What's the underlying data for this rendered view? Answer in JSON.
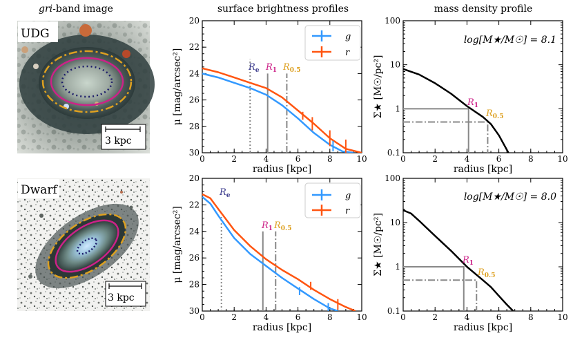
{
  "column_titles": {
    "image_prefix": "gri",
    "image_suffix": "-band image",
    "sb": "surface brightness profiles",
    "mass": "mass density profile"
  },
  "galaxies": [
    {
      "label": "UDG",
      "scale_bar": "3 kpc",
      "mass_text": "log[M★/M☉] = 8.1"
    },
    {
      "label": "Dwarf",
      "scale_bar": "3 kpc",
      "mass_text": "log[M★/M☉] = 8.0"
    }
  ],
  "legend": {
    "g": "g",
    "r": "r"
  },
  "radius_labels": {
    "Re": "R",
    "Re_sub": "e",
    "R1": "R",
    "R1_sub": "1",
    "R05": "R",
    "R05_sub": "0.5"
  },
  "colors": {
    "g": "#3399ff",
    "r": "#ff5511",
    "Re": "#3a3a8c",
    "R1": "#cc2288",
    "R05": "#dda020",
    "ref_line": "#888888",
    "mass_curve": "#000000"
  },
  "chart_data": [
    {
      "id": "udg-sb",
      "type": "line",
      "xlabel": "radius [kpc]",
      "ylabel": "μ [mag/arcsec²]",
      "xlim": [
        0,
        10
      ],
      "ylim": [
        30,
        20
      ],
      "xticks": [
        0,
        2,
        4,
        6,
        8,
        10
      ],
      "yticks": [
        20,
        22,
        24,
        26,
        28,
        30
      ],
      "series": [
        {
          "name": "g",
          "x": [
            0,
            1,
            2,
            3,
            4,
            5,
            6,
            7,
            8,
            8.8,
            9.5
          ],
          "y": [
            24.0,
            24.3,
            24.7,
            25.1,
            25.6,
            26.4,
            27.4,
            28.5,
            29.4,
            29.9,
            30.0
          ]
        },
        {
          "name": "r",
          "x": [
            0,
            1,
            2,
            3,
            4,
            5,
            6,
            7,
            8,
            9,
            10
          ],
          "y": [
            23.6,
            23.9,
            24.3,
            24.7,
            25.1,
            25.8,
            26.8,
            27.8,
            28.9,
            29.7,
            30.0
          ]
        }
      ],
      "errorbars": [
        {
          "series": "r",
          "x": 6.3,
          "y": 27.2,
          "err": 0.3
        },
        {
          "series": "r",
          "x": 6.9,
          "y": 27.8,
          "err": 0.5
        },
        {
          "series": "r",
          "x": 8.0,
          "y": 28.9,
          "err": 0.6
        },
        {
          "series": "r",
          "x": 9.0,
          "y": 29.6,
          "err": 0.6
        },
        {
          "series": "g",
          "x": 8.2,
          "y": 29.5,
          "err": 0.4
        }
      ],
      "radii": {
        "Re": 3.0,
        "R1": 4.1,
        "R05": 5.3
      }
    },
    {
      "id": "udg-mass",
      "type": "line",
      "xlabel": "radius [kpc]",
      "ylabel": "Σ★ [M☉/pc²]",
      "xlim": [
        0,
        10
      ],
      "ylim": [
        0.1,
        100
      ],
      "yscale": "log",
      "xticks": [
        0,
        2,
        4,
        6,
        8,
        10
      ],
      "yticks": [
        0.1,
        1,
        10,
        100
      ],
      "ytick_labels": [
        "0.1",
        "1",
        "10",
        "100"
      ],
      "x": [
        0,
        1,
        2,
        3,
        4,
        5,
        5.5,
        6,
        6.6
      ],
      "y": [
        8.0,
        6.0,
        3.8,
        2.2,
        1.15,
        0.65,
        0.45,
        0.25,
        0.1
      ],
      "R1": {
        "x": 4.1,
        "y": 1.0
      },
      "R05": {
        "x": 5.3,
        "y": 0.5
      }
    },
    {
      "id": "dwarf-sb",
      "type": "line",
      "xlabel": "radius [kpc]",
      "ylabel": "μ [mag/arcsec²]",
      "xlim": [
        0,
        10
      ],
      "ylim": [
        30,
        20
      ],
      "xticks": [
        0,
        2,
        4,
        6,
        8,
        10
      ],
      "yticks": [
        20,
        22,
        24,
        26,
        28,
        30
      ],
      "series": [
        {
          "name": "g",
          "x": [
            0,
            0.5,
            1,
            2,
            3,
            4,
            5,
            6,
            7,
            8,
            8.5
          ],
          "y": [
            21.4,
            21.9,
            22.8,
            24.5,
            25.7,
            26.6,
            27.5,
            28.3,
            29.1,
            29.8,
            30.0
          ]
        },
        {
          "name": "r",
          "x": [
            0,
            0.5,
            1,
            2,
            3,
            4,
            5,
            6,
            7,
            8,
            9,
            9.6
          ],
          "y": [
            21.2,
            21.5,
            22.3,
            23.9,
            25.1,
            26.1,
            26.9,
            27.6,
            28.4,
            29.1,
            29.7,
            30.0
          ]
        }
      ],
      "errorbars": [
        {
          "series": "r",
          "x": 6.8,
          "y": 28.1,
          "err": 0.3
        },
        {
          "series": "r",
          "x": 8.5,
          "y": 29.5,
          "err": 0.4
        },
        {
          "series": "g",
          "x": 6.1,
          "y": 28.5,
          "err": 0.3
        },
        {
          "series": "g",
          "x": 7.9,
          "y": 29.8,
          "err": 0.4
        }
      ],
      "radii": {
        "Re": 1.2,
        "R1": 3.8,
        "R05": 4.6
      }
    },
    {
      "id": "dwarf-mass",
      "type": "line",
      "xlabel": "radius [kpc]",
      "ylabel": "Σ★ [M☉/pc²]",
      "xlim": [
        0,
        10
      ],
      "ylim": [
        0.1,
        100
      ],
      "yscale": "log",
      "xticks": [
        0,
        2,
        4,
        6,
        8,
        10
      ],
      "yticks": [
        0.1,
        1,
        10,
        100
      ],
      "ytick_labels": [
        "0.1",
        "1",
        "10",
        "100"
      ],
      "x": [
        0,
        0.5,
        1,
        2,
        3,
        4,
        5,
        5.5,
        6,
        6.5,
        6.9
      ],
      "y": [
        19,
        16,
        11,
        5.0,
        2.3,
        1.0,
        0.5,
        0.35,
        0.22,
        0.14,
        0.1
      ],
      "R1": {
        "x": 3.8,
        "y": 1.0
      },
      "R05": {
        "x": 4.6,
        "y": 0.5
      }
    }
  ]
}
